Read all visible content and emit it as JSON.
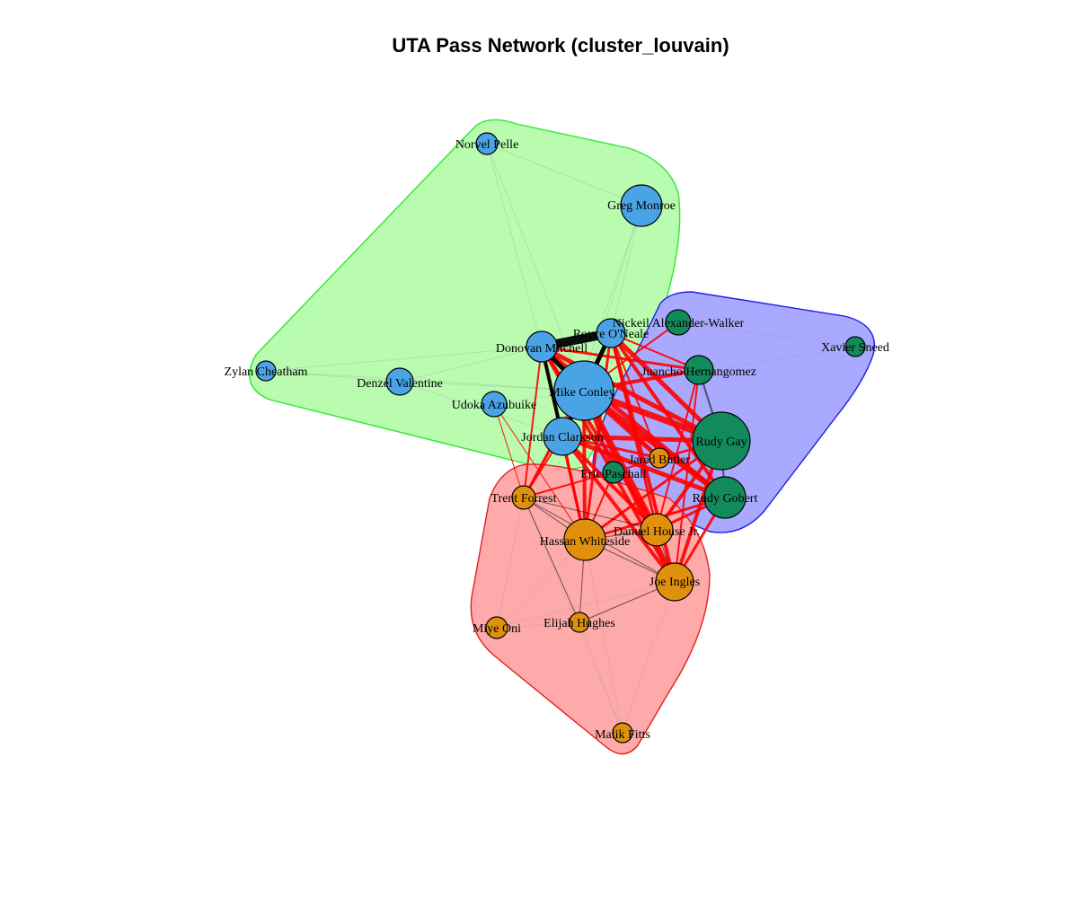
{
  "title": "UTA Pass Network (cluster_louvain)",
  "colors": {
    "blue_node": "#4aa3e4",
    "orange_node": "#e0900c",
    "green_node": "#138a5c",
    "green_hull_fill": "#b9fcb0",
    "green_hull_stroke": "#2ee82e",
    "blue_hull_fill": "#a9a9ff",
    "blue_hull_stroke": "#1e1ee6",
    "red_hull_fill": "#ffaaaa",
    "red_hull_stroke": "#e61e1e",
    "intra_edge": "#000000",
    "inter_edge": "#ff0000"
  },
  "clusters": [
    {
      "id": "c1",
      "color_key": "blue_node"
    },
    {
      "id": "c2",
      "color_key": "green_node"
    },
    {
      "id": "c3",
      "color_key": "orange_node"
    }
  ],
  "nodes": [
    {
      "id": "norvel-pelle",
      "label": "Norvel Pelle",
      "cluster": "c1"
    },
    {
      "id": "greg-monroe",
      "label": "Greg Monroe",
      "cluster": "c1"
    },
    {
      "id": "royce-oneale",
      "label": "Royce O'Neale",
      "cluster": "c1"
    },
    {
      "id": "donovan-mitchell",
      "label": "Donovan Mitchell",
      "cluster": "c1"
    },
    {
      "id": "zylan-cheatham",
      "label": "Zylan Cheatham",
      "cluster": "c1"
    },
    {
      "id": "denzel-valentine",
      "label": "Denzel Valentine",
      "cluster": "c1"
    },
    {
      "id": "udoka-azubuike",
      "label": "Udoka Azubuike",
      "cluster": "c1"
    },
    {
      "id": "mike-conley",
      "label": "Mike Conley",
      "cluster": "c1"
    },
    {
      "id": "jordan-clarkson",
      "label": "Jordan Clarkson",
      "cluster": "c1"
    },
    {
      "id": "nickeil-alexander-walker",
      "label": "Nickeil Alexander-Walker",
      "cluster": "c2"
    },
    {
      "id": "xavier-sneed",
      "label": "Xavier Sneed",
      "cluster": "c2"
    },
    {
      "id": "juancho-hernangomez",
      "label": "Juancho Hernangomez",
      "cluster": "c2"
    },
    {
      "id": "rudy-gay",
      "label": "Rudy Gay",
      "cluster": "c2"
    },
    {
      "id": "eric-paschall",
      "label": "Eric Paschall",
      "cluster": "c2"
    },
    {
      "id": "rudy-gobert",
      "label": "Rudy Gobert",
      "cluster": "c2"
    },
    {
      "id": "jared-butler",
      "label": "Jared Butler",
      "cluster": "c3"
    },
    {
      "id": "trent-forrest",
      "label": "Trent Forrest",
      "cluster": "c3"
    },
    {
      "id": "hassan-whiteside",
      "label": "Hassan Whiteside",
      "cluster": "c3"
    },
    {
      "id": "danuel-house-jr",
      "label": "Danuel House Jr.",
      "cluster": "c3"
    },
    {
      "id": "joe-ingles",
      "label": "Joe Ingles",
      "cluster": "c3"
    },
    {
      "id": "miye-oni",
      "label": "Miye Oni",
      "cluster": "c3"
    },
    {
      "id": "elijah-hughes",
      "label": "Elijah Hughes",
      "cluster": "c3"
    },
    {
      "id": "malik-fitts",
      "label": "Malik Fitts",
      "cluster": "c3"
    }
  ]
}
